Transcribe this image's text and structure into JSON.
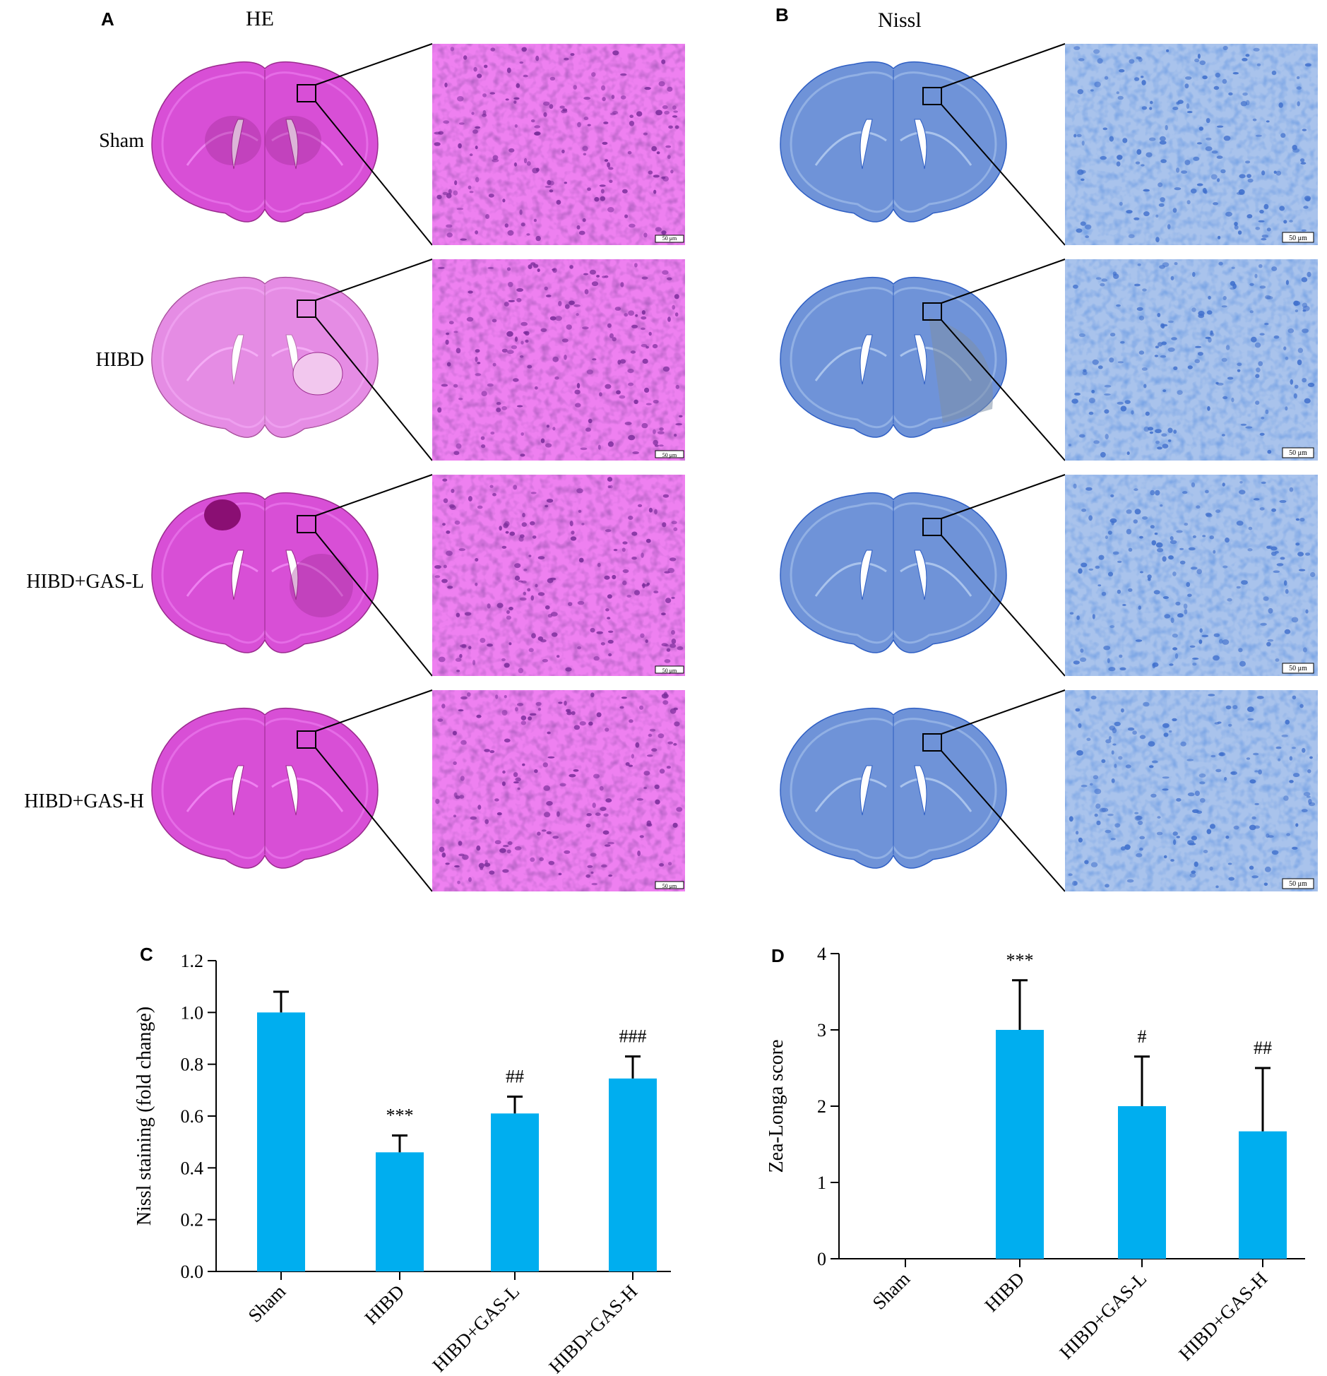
{
  "panels": {
    "A": {
      "letter": "A",
      "stain": "HE"
    },
    "B": {
      "letter": "B",
      "stain": "Nissl"
    }
  },
  "histology": {
    "groups": [
      "Sham",
      "HIBD",
      "HIBD+GAS-L",
      "HIBD+GAS-H"
    ],
    "scale_bar": "50 μm",
    "he_colors": {
      "tissue": "#d84fd6",
      "light": "#ee80f0",
      "cell": "#7a2d9a",
      "dark": "#9a2b8e"
    },
    "nissl_colors": {
      "tissue": "#6f93d8",
      "light": "#a9c3ec",
      "cell": "#3f6fcc",
      "dark": "#2f5fc4"
    }
  },
  "chart_data": [
    {
      "panel": "C",
      "type": "bar",
      "categories": [
        "Sham",
        "HIBD",
        "HIBD+GAS-L",
        "HIBD+GAS-H"
      ],
      "values": [
        1.0,
        0.46,
        0.61,
        0.745
      ],
      "errors": [
        0.08,
        0.065,
        0.065,
        0.085
      ],
      "annotations": [
        "",
        "***",
        "##",
        "###"
      ],
      "ylabel": "Nissl staining (fold change)",
      "ylim": [
        0.0,
        1.2
      ],
      "yticks": [
        "0.0",
        "0.2",
        "0.4",
        "0.6",
        "0.8",
        "1.0",
        "1.2"
      ],
      "color": "#00aeef"
    },
    {
      "panel": "D",
      "type": "bar",
      "categories": [
        "Sham",
        "HIBD",
        "HIBD+GAS-L",
        "HIBD+GAS-H"
      ],
      "values": [
        0,
        3.0,
        2.0,
        1.67
      ],
      "errors": [
        0,
        0.65,
        0.65,
        0.83
      ],
      "annotations": [
        "",
        "***",
        "#",
        "##"
      ],
      "ylabel": "Zea-Longa score",
      "ylim": [
        0,
        4
      ],
      "yticks": [
        "0",
        "1",
        "2",
        "3",
        "4"
      ],
      "color": "#00aeef"
    }
  ]
}
